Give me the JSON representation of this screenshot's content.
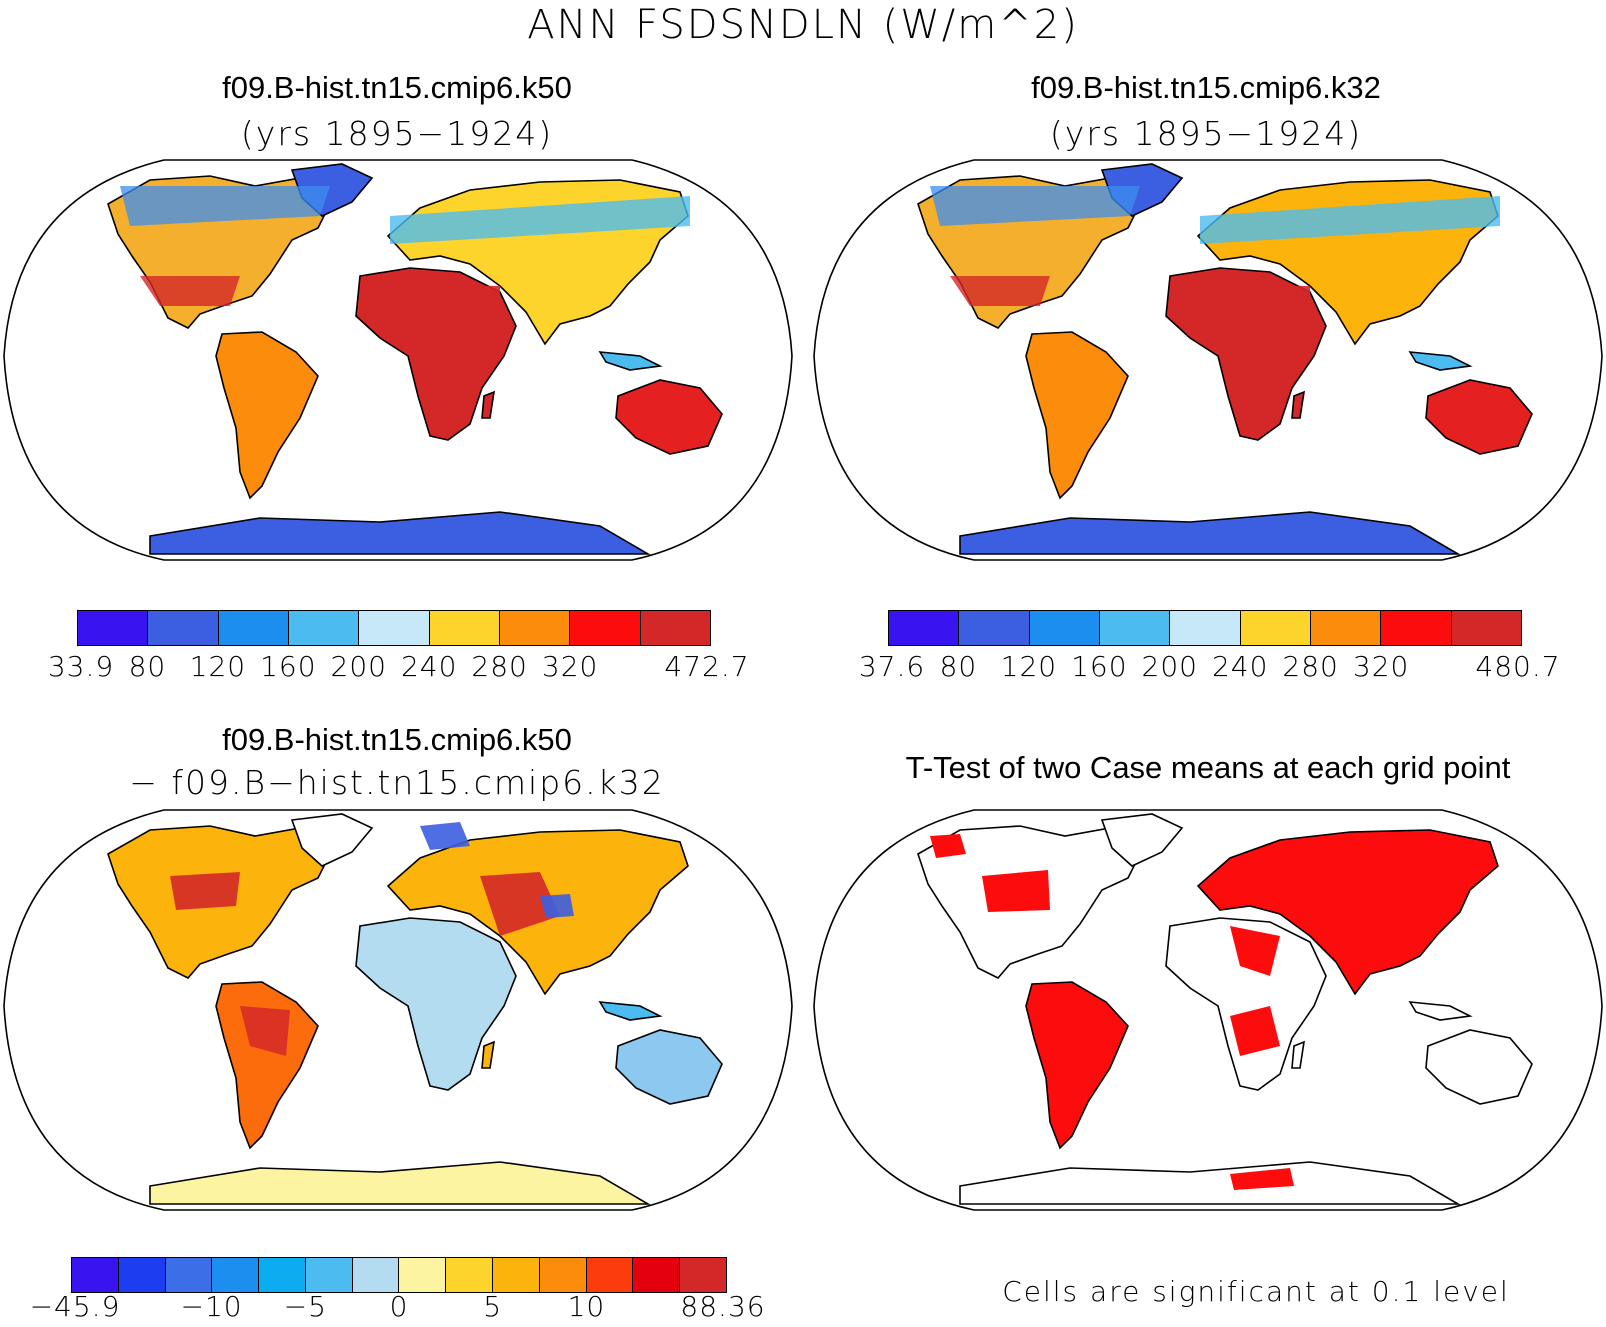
{
  "main_title": "ANN FSDSNDLN (W/m^2)",
  "panels": {
    "top_left": {
      "title": "f09.B-hist.tn15.cmip6.k50",
      "subtitle": "(yrs 1895−1924)",
      "colorbar": {
        "colors": [
          "#3a14f0",
          "#3c5ee0",
          "#1c8ef0",
          "#4cbcf0",
          "#c6e8f8",
          "#fcd42c",
          "#fc8c0c",
          "#fc0c0c",
          "#d42828"
        ],
        "ticks": [
          "33.9",
          "80",
          "120",
          "160",
          "200",
          "240",
          "280",
          "320",
          "472.7"
        ]
      }
    },
    "top_right": {
      "title": "f09.B-hist.tn15.cmip6.k32",
      "subtitle": "(yrs 1895−1924)",
      "colorbar": {
        "colors": [
          "#3a14f0",
          "#3c5ee0",
          "#1c8ef0",
          "#4cbcf0",
          "#c6e8f8",
          "#fcd42c",
          "#fc8c0c",
          "#fc0c0c",
          "#d42828"
        ],
        "ticks": [
          "37.6",
          "80",
          "120",
          "160",
          "200",
          "240",
          "280",
          "320",
          "480.7"
        ]
      }
    },
    "bottom_left": {
      "title": "f09.B-hist.tn15.cmip6.k50",
      "subtitle": "− f09.B−hist.tn15.cmip6.k32",
      "colorbar": {
        "colors": [
          "#3a14f0",
          "#1c3ef0",
          "#3c6ee8",
          "#1c8ef0",
          "#0cacf0",
          "#4cbcf0",
          "#b4dcf0",
          "#fcf4a0",
          "#fcd42c",
          "#fcb40c",
          "#fc8c0c",
          "#fc3c0c",
          "#e4000c",
          "#d42828"
        ],
        "ticks": [
          "−45.9",
          "−10",
          "−5",
          "0",
          "5",
          "10",
          "88.36"
        ]
      }
    },
    "bottom_right": {
      "title": "T-Test of two Case means at each grid point",
      "footnote": "Cells are significant at 0.1 level"
    }
  }
}
